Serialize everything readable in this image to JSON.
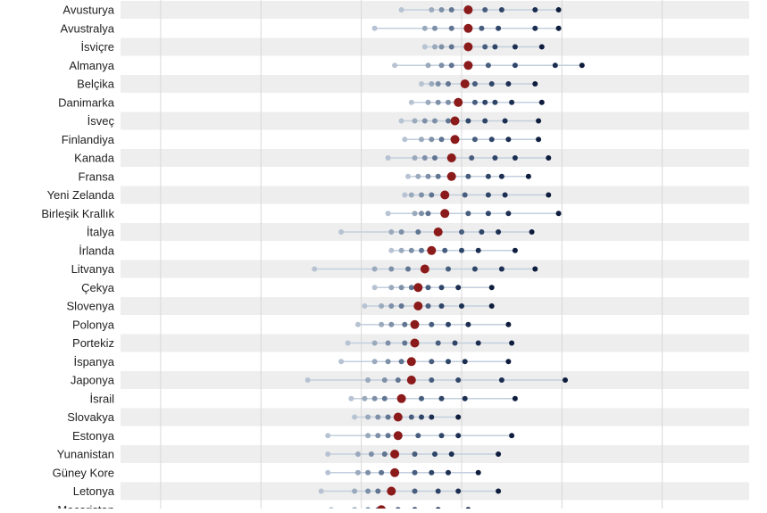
{
  "colors": {
    "band": "#eeeeee",
    "grid": "#d8d8d8",
    "range_line": "#c3cfdd",
    "label": "#222222",
    "median": "#8b1a1a",
    "dot_scale": [
      "#b7c3d2",
      "#9aaabd",
      "#7e90a8",
      "#607592",
      "#485e7e",
      "#2f4669",
      "#1c2f52",
      "#0e1d3d"
    ]
  },
  "chart_data": {
    "type": "scatter",
    "title": "",
    "xlabel": "",
    "ylabel": "",
    "grid": true,
    "legend": "none",
    "x_range": [
      -3.6,
      5.8
    ],
    "x_gridlines": [
      -3,
      -1.5,
      0,
      1.5,
      3,
      4.5
    ],
    "categories": [
      "Avusturya",
      "Avustralya",
      "İsviçre",
      "Almanya",
      "Belçika",
      "Danimarka",
      "İsveç",
      "Finlandiya",
      "Kanada",
      "Fransa",
      "Yeni Zelanda",
      "Birleşik Krallık",
      "İtalya",
      "İrlanda",
      "Litvanya",
      "Çekya",
      "Slovenya",
      "Polonya",
      "Portekiz",
      "İspanya",
      "Japonya",
      "İsrail",
      "Slovakya",
      "Estonya",
      "Yunanistan",
      "Güney Kore",
      "Letonya",
      "Macaristan"
    ],
    "rows": [
      {
        "label": "Avusturya",
        "points": [
          0.6,
          1.05,
          1.2,
          1.35,
          1.6,
          1.85,
          2.1,
          2.6,
          2.95
        ],
        "median": 1.6
      },
      {
        "label": "Avustralya",
        "points": [
          0.2,
          0.95,
          1.1,
          1.35,
          1.6,
          1.8,
          2.05,
          2.6,
          2.95
        ],
        "median": 1.6
      },
      {
        "label": "İsviçre",
        "points": [
          0.95,
          1.1,
          1.2,
          1.35,
          1.6,
          1.85,
          2.0,
          2.3,
          2.7
        ],
        "median": 1.6
      },
      {
        "label": "Almanya",
        "points": [
          0.5,
          1.0,
          1.2,
          1.35,
          1.6,
          1.9,
          2.3,
          2.9,
          3.3
        ],
        "median": 1.6
      },
      {
        "label": "Belçika",
        "points": [
          0.9,
          1.05,
          1.15,
          1.3,
          1.55,
          1.7,
          1.95,
          2.2,
          2.6
        ],
        "median": 1.55
      },
      {
        "label": "Danimarka",
        "points": [
          0.75,
          1.0,
          1.15,
          1.3,
          1.45,
          1.7,
          1.85,
          2.0,
          2.25,
          2.7
        ],
        "median": 1.45
      },
      {
        "label": "İsveç",
        "points": [
          0.6,
          0.8,
          0.95,
          1.1,
          1.3,
          1.4,
          1.6,
          1.85,
          2.15,
          2.65
        ],
        "median": 1.4
      },
      {
        "label": "Finlandiya",
        "points": [
          0.65,
          0.9,
          1.05,
          1.2,
          1.4,
          1.7,
          1.95,
          2.2,
          2.65
        ],
        "median": 1.4
      },
      {
        "label": "Kanada",
        "points": [
          0.4,
          0.8,
          0.95,
          1.1,
          1.35,
          1.65,
          2.0,
          2.3,
          2.8
        ],
        "median": 1.35
      },
      {
        "label": "Fransa",
        "points": [
          0.7,
          0.85,
          1.0,
          1.15,
          1.35,
          1.6,
          1.9,
          2.1,
          2.5
        ],
        "median": 1.35
      },
      {
        "label": "Yeni Zelanda",
        "points": [
          0.65,
          0.75,
          0.9,
          1.05,
          1.25,
          1.55,
          1.9,
          2.15,
          2.8
        ],
        "median": 1.25
      },
      {
        "label": "Birleşik Krallık",
        "points": [
          0.4,
          0.8,
          0.9,
          1.0,
          1.25,
          1.6,
          1.9,
          2.2,
          2.95
        ],
        "median": 1.25
      },
      {
        "label": "İtalya",
        "points": [
          -0.3,
          0.45,
          0.6,
          0.85,
          1.15,
          1.5,
          1.8,
          2.05,
          2.55
        ],
        "median": 1.15
      },
      {
        "label": "İrlanda",
        "points": [
          0.45,
          0.6,
          0.75,
          0.9,
          1.05,
          1.25,
          1.5,
          1.75,
          2.3
        ],
        "median": 1.05
      },
      {
        "label": "Litvanya",
        "points": [
          -0.7,
          0.2,
          0.45,
          0.7,
          0.95,
          1.3,
          1.7,
          2.1,
          2.6
        ],
        "median": 0.95
      },
      {
        "label": "Çekya",
        "points": [
          0.2,
          0.45,
          0.6,
          0.75,
          0.85,
          1.0,
          1.2,
          1.45,
          1.95
        ],
        "median": 0.85
      },
      {
        "label": "Slovenya",
        "points": [
          0.05,
          0.3,
          0.45,
          0.6,
          0.85,
          1.0,
          1.2,
          1.5,
          1.95
        ],
        "median": 0.85
      },
      {
        "label": "Polonya",
        "points": [
          -0.05,
          0.3,
          0.45,
          0.65,
          0.8,
          1.05,
          1.3,
          1.6,
          2.2
        ],
        "median": 0.8
      },
      {
        "label": "Portekiz",
        "points": [
          -0.2,
          0.2,
          0.4,
          0.65,
          0.8,
          1.15,
          1.4,
          1.75,
          2.25
        ],
        "median": 0.8
      },
      {
        "label": "İspanya",
        "points": [
          -0.3,
          0.2,
          0.4,
          0.6,
          0.75,
          1.05,
          1.3,
          1.55,
          2.2
        ],
        "median": 0.75
      },
      {
        "label": "Japonya",
        "points": [
          -0.8,
          0.1,
          0.35,
          0.55,
          0.75,
          1.05,
          1.45,
          2.1,
          3.05
        ],
        "median": 0.75
      },
      {
        "label": "İsrail",
        "points": [
          -0.15,
          0.05,
          0.2,
          0.35,
          0.6,
          0.9,
          1.2,
          1.55,
          2.3
        ],
        "median": 0.6
      },
      {
        "label": "Slovakya",
        "points": [
          -0.1,
          0.1,
          0.25,
          0.4,
          0.55,
          0.75,
          0.9,
          1.05,
          1.45
        ],
        "median": 0.55
      },
      {
        "label": "Estonya",
        "points": [
          -0.5,
          0.1,
          0.25,
          0.4,
          0.55,
          0.85,
          1.2,
          1.45,
          2.25
        ],
        "median": 0.55
      },
      {
        "label": "Yunanistan",
        "points": [
          -0.5,
          -0.05,
          0.15,
          0.35,
          0.5,
          0.8,
          1.1,
          1.35,
          2.05
        ],
        "median": 0.5
      },
      {
        "label": "Güney Kore",
        "points": [
          -0.5,
          -0.05,
          0.1,
          0.3,
          0.5,
          0.8,
          1.05,
          1.3,
          1.75
        ],
        "median": 0.5
      },
      {
        "label": "Letonya",
        "points": [
          -0.6,
          -0.1,
          0.1,
          0.25,
          0.45,
          0.8,
          1.15,
          1.45,
          2.05
        ],
        "median": 0.45
      },
      {
        "label": "Macaristan",
        "points": [
          -0.45,
          -0.1,
          0.1,
          0.25,
          0.3,
          0.55,
          0.8,
          1.15,
          1.6
        ],
        "median": 0.3
      }
    ]
  }
}
